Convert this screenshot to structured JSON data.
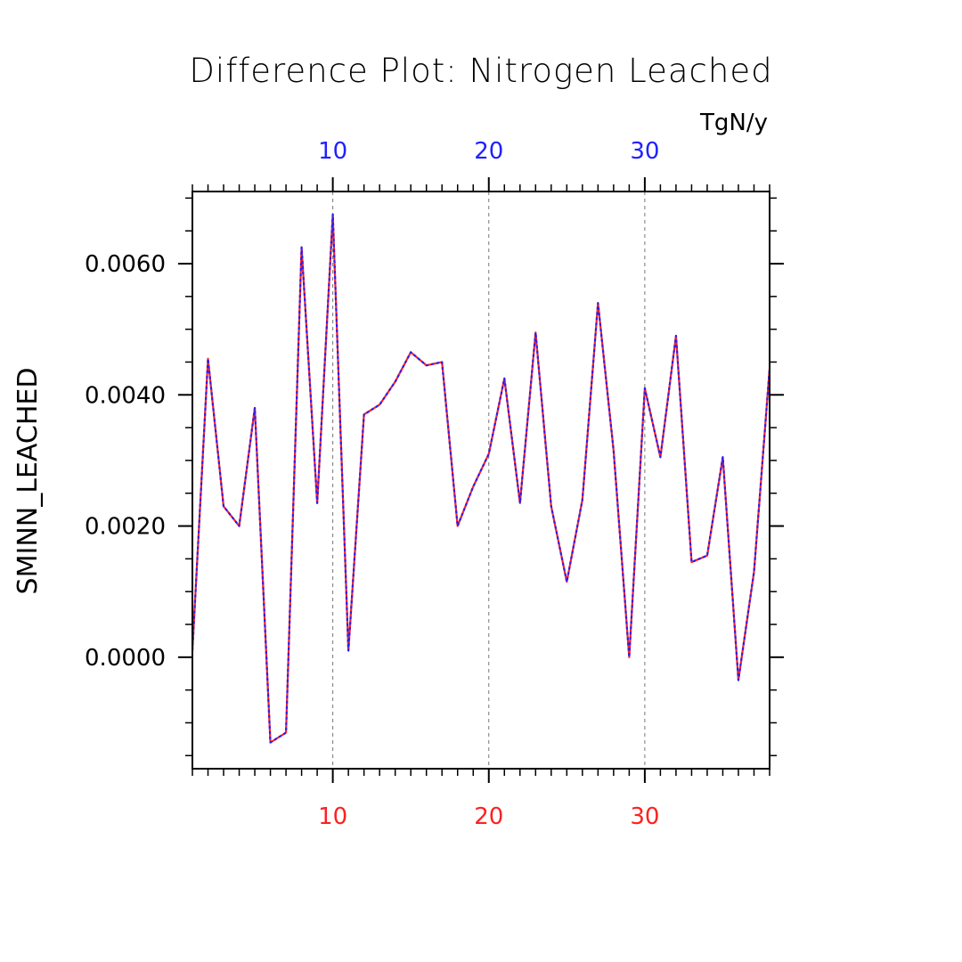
{
  "colors": {
    "top_axis": "#2020ff",
    "bottom_axis": "#ff2020",
    "series_a": "#ff2020",
    "series_b": "#2020ff",
    "grid": "#777777",
    "axis": "#000000"
  },
  "chart_data": {
    "type": "line",
    "title": "Difference Plot: Nitrogen Leached",
    "units": "TgN/y",
    "ylabel": "SMINN_LEACHED",
    "xlabel": "",
    "xlim": [
      1,
      38
    ],
    "ylim": [
      -0.0017,
      0.0071
    ],
    "x_ticks": [
      10,
      20,
      30
    ],
    "x_tick_labels_top": [
      "10",
      "20",
      "30"
    ],
    "x_tick_labels_bottom": [
      "10",
      "20",
      "30"
    ],
    "y_ticks": [
      0.0,
      0.002,
      0.004,
      0.006
    ],
    "y_tick_labels": [
      "0.0000",
      "0.0020",
      "0.0040",
      "0.0060"
    ],
    "grid": "vertical dashed at major x ticks",
    "x": [
      1,
      2,
      3,
      4,
      5,
      6,
      7,
      8,
      9,
      10,
      11,
      12,
      13,
      14,
      15,
      16,
      17,
      18,
      19,
      20,
      21,
      22,
      23,
      24,
      25,
      26,
      27,
      28,
      29,
      30,
      31,
      32,
      33,
      34,
      35,
      36,
      37,
      38
    ],
    "series": [
      {
        "values": [
          0.0001,
          0.00455,
          0.0023,
          0.002,
          0.0038,
          -0.0013,
          -0.00115,
          0.00625,
          0.00235,
          0.00675,
          0.0001,
          0.0037,
          0.00385,
          0.0042,
          0.00465,
          0.00445,
          0.0045,
          0.002,
          0.0026,
          0.0031,
          0.00425,
          0.00235,
          0.00495,
          0.0023,
          0.00115,
          0.0024,
          0.0054,
          0.00315,
          0.0,
          0.0041,
          0.00305,
          0.0049,
          0.00145,
          0.00155,
          0.00305,
          -0.00035,
          0.0013,
          0.0044
        ]
      },
      {
        "values": [
          0.0001,
          0.00455,
          0.0023,
          0.002,
          0.0038,
          -0.0013,
          -0.00115,
          0.00625,
          0.00235,
          0.00675,
          0.0001,
          0.0037,
          0.00385,
          0.0042,
          0.00465,
          0.00445,
          0.0045,
          0.002,
          0.0026,
          0.0031,
          0.00425,
          0.00235,
          0.00495,
          0.0023,
          0.00115,
          0.0024,
          0.0054,
          0.00315,
          0.0,
          0.0041,
          0.00305,
          0.0049,
          0.00145,
          0.00155,
          0.00305,
          -0.00035,
          0.0013,
          0.0044
        ]
      }
    ]
  }
}
